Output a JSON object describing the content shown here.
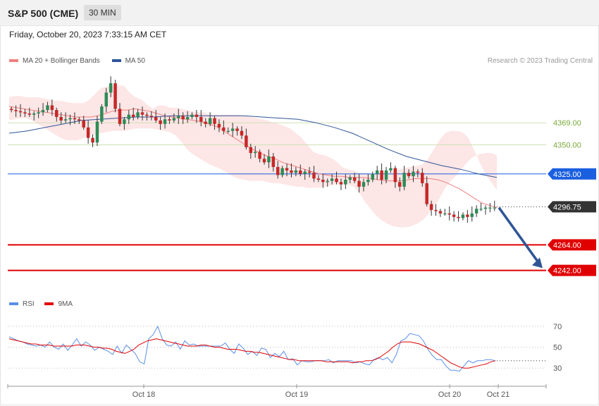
{
  "header": {
    "title": "S&P 500 (CME)",
    "interval": "30 MIN"
  },
  "date_line": "Friday, October 20, 2023 7:33:15 AM CET",
  "credit": "Research © 2023 Trading Central",
  "legend": {
    "ma20": {
      "label": "MA 20 + Bollinger Bands",
      "color": "#f08080"
    },
    "ma50": {
      "label": "MA 50",
      "color": "#2f5597"
    }
  },
  "rsi_legend": {
    "rsi": {
      "label": "RSI",
      "color": "#5b8ee6"
    },
    "ma9": {
      "label": "9MA",
      "color": "#e00000"
    }
  },
  "chart_data": [
    {
      "type": "candlestick",
      "y_range": [
        4226,
        4414
      ],
      "x_labels": [
        "Oct 18",
        "Oct 19",
        "Oct 20",
        "Oct 21"
      ],
      "levels": [
        {
          "value": "4369.00",
          "kind": "resistance",
          "color": "#7aa83a"
        },
        {
          "value": "4350.00",
          "kind": "resistance",
          "color": "#7aa83a"
        },
        {
          "value": "4325.00",
          "kind": "pivot",
          "color": "#1a5fe0"
        },
        {
          "value": "4296.75",
          "kind": "last",
          "color": "#333333"
        },
        {
          "value": "4264.00",
          "kind": "support",
          "color": "#e00000"
        },
        {
          "value": "4242.00",
          "kind": "support",
          "color": "#e00000"
        }
      ],
      "forecast_arrow": {
        "from": 4296,
        "to": 4244,
        "color": "#2f5597"
      },
      "close": [
        4380,
        4379,
        4378,
        4377,
        4376,
        4377,
        4378,
        4380,
        4384,
        4380,
        4374,
        4371,
        4372,
        4373,
        4372,
        4371,
        4365,
        4356,
        4352,
        4370,
        4383,
        4395,
        4403,
        4381,
        4368,
        4372,
        4376,
        4374,
        4378,
        4376,
        4375,
        4374,
        4371,
        4368,
        4372,
        4371,
        4373,
        4375,
        4372,
        4374,
        4376,
        4374,
        4370,
        4368,
        4373,
        4368,
        4365,
        4362,
        4362,
        4364,
        4362,
        4358,
        4348,
        4343,
        4344,
        4338,
        4335,
        4340,
        4331,
        4324,
        4330,
        4328,
        4326,
        4328,
        4325,
        4327,
        4326,
        4321,
        4320,
        4318,
        4319,
        4321,
        4318,
        4316,
        4320,
        4322,
        4319,
        4314,
        4318,
        4320,
        4325,
        4328,
        4320,
        4328,
        4330,
        4318,
        4314,
        4326,
        4323,
        4327,
        4326,
        4317,
        4299,
        4294,
        4293,
        4291,
        4291,
        4290,
        4288,
        4287,
        4290,
        4288,
        4291,
        4295,
        4295,
        4296,
        4296,
        4296
      ],
      "bollinger_upper": [
        4391,
        4392,
        4392,
        4391,
        4391,
        4391,
        4390,
        4389,
        4388,
        4388,
        4387,
        4386,
        4386,
        4386,
        4389,
        4394,
        4399,
        4400,
        4401,
        4401,
        4401,
        4395,
        4391,
        4389,
        4385,
        4381,
        4384,
        4384,
        4382,
        4382,
        4381,
        4380,
        4379,
        4378,
        4378,
        4376,
        4376,
        4376,
        4376,
        4376,
        4376,
        4375,
        4374,
        4373,
        4372,
        4371,
        4369,
        4368,
        4366,
        4364,
        4360,
        4356,
        4350,
        4344,
        4342,
        4341,
        4339,
        4336,
        4331,
        4329,
        4328,
        4326,
        4326,
        4325,
        4325,
        4326,
        4327,
        4327,
        4329,
        4330,
        4331,
        4332,
        4333,
        4338,
        4346,
        4354,
        4360,
        4362,
        4362,
        4361,
        4356,
        4346,
        4335,
        4325,
        4318,
        4311
      ],
      "bollinger_lower": [
        4371,
        4372,
        4373,
        4373,
        4371,
        4368,
        4365,
        4362,
        4359,
        4356,
        4354,
        4354,
        4354,
        4356,
        4358,
        4359,
        4360,
        4361,
        4362,
        4362,
        4362,
        4363,
        4364,
        4364,
        4364,
        4364,
        4363,
        4362,
        4361,
        4358,
        4353,
        4346,
        4342,
        4339,
        4336,
        4333,
        4331,
        4329,
        4326,
        4323,
        4321,
        4320,
        4319,
        4319,
        4319,
        4318,
        4317,
        4317,
        4316,
        4315,
        4314,
        4314,
        4313,
        4313,
        4313,
        4314,
        4315,
        4316,
        4316,
        4316,
        4314,
        4309,
        4301,
        4295,
        4289,
        4285,
        4282,
        4280,
        4279,
        4279,
        4280,
        4282,
        4285,
        4290,
        4296,
        4304,
        4313,
        4319,
        4324,
        4330,
        4336,
        4340,
        4342,
        4343,
        4343,
        4341
      ],
      "ma20": [
        4383,
        4382,
        4381,
        4380,
        4379,
        4378,
        4377,
        4376,
        4375,
        4374,
        4374,
        4374,
        4375,
        4377,
        4379,
        4380,
        4380,
        4381,
        4380,
        4379,
        4377,
        4375,
        4374,
        4373,
        4372,
        4371,
        4370,
        4368,
        4366,
        4362,
        4358,
        4354,
        4350,
        4346,
        4343,
        4340,
        4338,
        4335,
        4333,
        4331,
        4329,
        4327,
        4325,
        4324,
        4323,
        4323,
        4322,
        4322,
        4322,
        4321,
        4320,
        4319,
        4319,
        4319,
        4320,
        4321,
        4321,
        4321,
        4320,
        4318,
        4315,
        4312,
        4308,
        4304,
        4300,
        4298,
        4296
      ],
      "ma50": [
        4360,
        4362,
        4365,
        4368,
        4371,
        4372,
        4373,
        4374,
        4374,
        4375,
        4375,
        4375,
        4375,
        4375,
        4374,
        4373,
        4372,
        4369,
        4365,
        4360,
        4353,
        4346,
        4340,
        4336,
        4332,
        4329,
        4325,
        4322
      ]
    },
    {
      "type": "line",
      "title": "RSI",
      "y_ticks": [
        70,
        50,
        30
      ],
      "y_range": [
        18,
        82
      ],
      "series": [
        {
          "name": "RSI",
          "values": [
            60,
            58,
            56,
            55,
            53,
            52,
            51,
            52,
            50,
            55,
            50,
            48,
            53,
            47,
            52,
            58,
            51,
            55,
            52,
            47,
            50,
            48,
            46,
            43,
            51,
            44,
            52,
            48,
            44,
            36,
            34,
            58,
            62,
            70,
            58,
            52,
            51,
            55,
            48,
            56,
            52,
            53,
            51,
            51,
            51,
            51,
            51,
            51,
            54,
            48,
            44,
            53,
            49,
            43,
            46,
            42,
            49,
            48,
            40,
            44,
            41,
            46,
            38,
            39,
            33,
            37,
            36,
            36,
            37,
            37,
            37,
            38,
            35,
            37,
            37,
            37,
            37,
            35,
            36,
            34,
            33,
            38,
            40,
            38,
            40,
            35,
            43,
            56,
            58,
            63,
            62,
            61,
            56,
            48,
            42,
            38,
            38,
            32,
            28,
            28,
            27,
            32,
            37,
            35,
            37,
            37,
            38,
            38,
            37
          ]
        },
        {
          "name": "9MA",
          "values": [
            58,
            57,
            56,
            55,
            54,
            53,
            53,
            52,
            52,
            52,
            51,
            51,
            51,
            51,
            51,
            52,
            52,
            52,
            51,
            50,
            50,
            49,
            49,
            48,
            46,
            45,
            44,
            46,
            48,
            52,
            54,
            56,
            57,
            58,
            57,
            56,
            55,
            54,
            53,
            52,
            51,
            51,
            51,
            52,
            52,
            51,
            50,
            50,
            49,
            48,
            48,
            48,
            47,
            46,
            46,
            45,
            45,
            44,
            43,
            42,
            41,
            40,
            39,
            38,
            38,
            37,
            37,
            37,
            37,
            37,
            37,
            36,
            36,
            36,
            36,
            36,
            36,
            35,
            36,
            36,
            37,
            37,
            38,
            40,
            43,
            46,
            50,
            53,
            55,
            55,
            55,
            54,
            53,
            51,
            49,
            47,
            44,
            41,
            38,
            35,
            33,
            31,
            30,
            30,
            31,
            32,
            33,
            34,
            36,
            37
          ]
        }
      ]
    }
  ]
}
